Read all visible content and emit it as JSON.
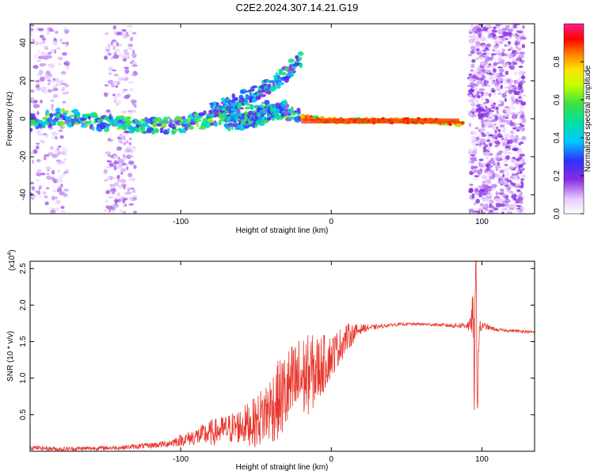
{
  "title": "C2E2.2024.307.14.21.G19",
  "chart_data": [
    {
      "type": "heatmap",
      "xlabel": "Height of straight line (km)",
      "ylabel": "Frequency (Hz)",
      "xlim": [
        -200,
        135
      ],
      "ylim": [
        -50,
        50
      ],
      "xticks": [
        -100,
        0,
        100
      ],
      "yticks": [
        -40,
        -20,
        0,
        20,
        40
      ],
      "colorbar": {
        "label": "Normalized spectral amplitude",
        "range": [
          0,
          1
        ],
        "ticks": [
          "0.0",
          "0.2",
          "0.4",
          "0.6",
          "0.8"
        ]
      },
      "features": [
        {
          "desc": "main trace",
          "x": [
            -200,
            -180,
            -160,
            -140,
            -120,
            -100,
            -80,
            -60,
            -40,
            -20,
            0,
            20,
            40,
            60,
            80,
            88
          ],
          "y": [
            -2,
            1,
            -1,
            -3,
            -4,
            -3,
            0,
            4,
            5,
            1,
            -1,
            -1,
            -1,
            -1,
            -2,
            -3
          ]
        },
        {
          "desc": "upper branch",
          "x": [
            -80,
            -60,
            -40,
            -30,
            -20
          ],
          "y": [
            4,
            10,
            18,
            24,
            32
          ]
        },
        {
          "desc": "lower branch",
          "x": [
            -70,
            -50,
            -40,
            -30
          ],
          "y": [
            -2,
            0,
            3,
            6
          ]
        }
      ],
      "noise_bands_x": [
        [
          -200,
          -175
        ],
        [
          -150,
          -130
        ],
        [
          92,
          128
        ]
      ]
    },
    {
      "type": "line",
      "xlabel": "Height of straight line (km)",
      "ylabel": "SNR (10 * v/v)",
      "exponent_label": "(x10",
      "exponent_value": "4",
      "xlim": [
        -200,
        135
      ],
      "ylim": [
        0,
        2.6
      ],
      "xticks": [
        -100,
        0,
        100
      ],
      "yticks": [
        0.5,
        1.0,
        1.5,
        2.0,
        2.5
      ],
      "line_color": "#e8362c",
      "x": [
        -200,
        -180,
        -160,
        -140,
        -120,
        -110,
        -100,
        -90,
        -80,
        -70,
        -60,
        -50,
        -40,
        -30,
        -20,
        -10,
        0,
        10,
        20,
        30,
        40,
        50,
        60,
        70,
        80,
        85,
        90,
        92,
        94,
        95,
        96,
        97,
        98,
        100,
        110,
        120,
        135
      ],
      "y": [
        0.05,
        0.03,
        0.04,
        0.05,
        0.08,
        0.1,
        0.15,
        0.2,
        0.25,
        0.3,
        0.35,
        0.4,
        0.6,
        0.8,
        1.0,
        1.1,
        1.3,
        1.55,
        1.68,
        1.7,
        1.73,
        1.74,
        1.74,
        1.73,
        1.72,
        1.72,
        1.73,
        1.7,
        1.9,
        1.0,
        2.6,
        0.6,
        1.6,
        1.72,
        1.66,
        1.65,
        1.63
      ],
      "noise_amplitude": [
        0.03,
        0.03,
        0.03,
        0.03,
        0.04,
        0.05,
        0.08,
        0.12,
        0.18,
        0.2,
        0.25,
        0.35,
        0.5,
        0.6,
        0.6,
        0.5,
        0.3,
        0.2,
        0.06,
        0.03,
        0.02,
        0.02,
        0.02,
        0.02,
        0.03,
        0.04,
        0.06,
        0.1,
        0.3,
        0.6,
        0.4,
        0.3,
        0.2,
        0.05,
        0.02,
        0.02,
        0.02
      ]
    }
  ]
}
